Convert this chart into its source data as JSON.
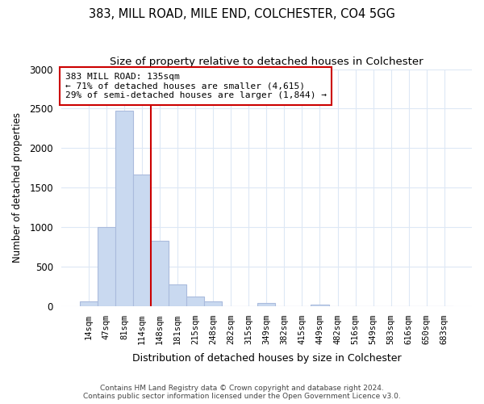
{
  "title": "383, MILL ROAD, MILE END, COLCHESTER, CO4 5GG",
  "subtitle": "Size of property relative to detached houses in Colchester",
  "xlabel": "Distribution of detached houses by size in Colchester",
  "ylabel": "Number of detached properties",
  "bar_labels": [
    "14sqm",
    "47sqm",
    "81sqm",
    "114sqm",
    "148sqm",
    "181sqm",
    "215sqm",
    "248sqm",
    "282sqm",
    "315sqm",
    "349sqm",
    "382sqm",
    "415sqm",
    "449sqm",
    "482sqm",
    "516sqm",
    "549sqm",
    "583sqm",
    "616sqm",
    "650sqm",
    "683sqm"
  ],
  "bar_values": [
    55,
    1000,
    2470,
    1660,
    830,
    270,
    120,
    55,
    0,
    0,
    40,
    0,
    0,
    20,
    0,
    0,
    0,
    0,
    0,
    0,
    0
  ],
  "bar_color": "#c9d9f0",
  "bar_edge_color": "#aabbdd",
  "property_line_color": "#cc0000",
  "annotation_line1": "383 MILL ROAD: 135sqm",
  "annotation_line2": "← 71% of detached houses are smaller (4,615)",
  "annotation_line3": "29% of semi-detached houses are larger (1,844) →",
  "annotation_box_color": "#ffffff",
  "annotation_box_edge_color": "#cc0000",
  "ylim": [
    0,
    3000
  ],
  "yticks": [
    0,
    500,
    1000,
    1500,
    2000,
    2500,
    3000
  ],
  "footer": "Contains HM Land Registry data © Crown copyright and database right 2024.\nContains public sector information licensed under the Open Government Licence v3.0.",
  "bg_color": "#ffffff",
  "grid_color": "#dde8f5",
  "title_fontsize": 10.5,
  "subtitle_fontsize": 9.5
}
